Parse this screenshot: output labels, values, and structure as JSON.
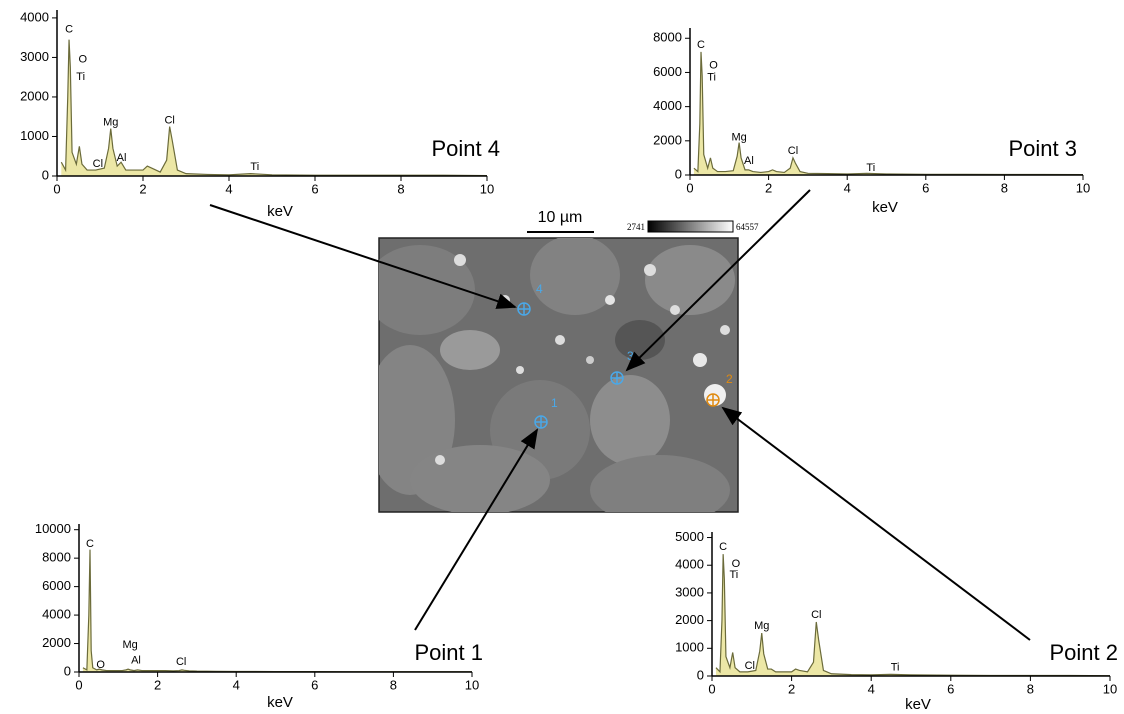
{
  "chart_data": [
    {
      "type": "line",
      "title": "Point 4",
      "x_label": "keV",
      "x": [
        0.1,
        0.2,
        0.25,
        0.28,
        0.31,
        0.35,
        0.45,
        0.52,
        0.58,
        0.7,
        0.9,
        1.1,
        1.2,
        1.25,
        1.3,
        1.4,
        1.49,
        1.6,
        1.8,
        2.0,
        2.1,
        2.2,
        2.4,
        2.55,
        2.62,
        2.68,
        2.8,
        3.0,
        3.5,
        4.0,
        4.5,
        5,
        6,
        7,
        8,
        9,
        10
      ],
      "series": [
        {
          "color": "#6b6b3a",
          "values": [
            350,
            150,
            2000,
            3450,
            2750,
            600,
            300,
            750,
            300,
            150,
            150,
            200,
            700,
            1200,
            700,
            250,
            350,
            150,
            150,
            150,
            250,
            200,
            100,
            400,
            1250,
            900,
            150,
            60,
            40,
            30,
            60,
            30,
            20,
            20,
            20,
            20,
            10
          ]
        }
      ],
      "xlim": [
        0,
        10
      ],
      "xticks": [
        0,
        2,
        4,
        6,
        8,
        10
      ],
      "ylim": [
        0,
        4200
      ],
      "yticks": [
        0,
        1000,
        2000,
        3000,
        4000
      ],
      "peaks": [
        {
          "label": "C",
          "x": 0.28,
          "y": 3700
        },
        {
          "label": "O",
          "x": 0.6,
          "y": 2950
        },
        {
          "label": "Ti",
          "x": 0.55,
          "y": 2500
        },
        {
          "label": "Mg",
          "x": 1.25,
          "y": 1350
        },
        {
          "label": "Cl",
          "x": 0.95,
          "y": 300
        },
        {
          "label": "Al",
          "x": 1.5,
          "y": 450
        },
        {
          "label": "Cl",
          "x": 2.62,
          "y": 1400
        },
        {
          "label": "Ti",
          "x": 4.6,
          "y": 230
        }
      ]
    },
    {
      "type": "line",
      "title": "Point 3",
      "x_label": "keV",
      "x": [
        0.1,
        0.2,
        0.25,
        0.28,
        0.31,
        0.35,
        0.45,
        0.52,
        0.58,
        0.7,
        0.9,
        1.1,
        1.2,
        1.25,
        1.3,
        1.4,
        1.49,
        1.6,
        1.8,
        2.0,
        2.1,
        2.2,
        2.4,
        2.55,
        2.62,
        2.68,
        2.8,
        3.0,
        3.5,
        4.0,
        4.5,
        5,
        6,
        7,
        8,
        9,
        10
      ],
      "series": [
        {
          "color": "#6b6b3a",
          "values": [
            400,
            200,
            3000,
            7200,
            5800,
            1200,
            400,
            1000,
            400,
            200,
            200,
            250,
            1100,
            1900,
            1000,
            300,
            300,
            200,
            150,
            200,
            300,
            200,
            150,
            400,
            1000,
            700,
            200,
            100,
            80,
            60,
            100,
            60,
            40,
            40,
            30,
            30,
            20
          ]
        }
      ],
      "xlim": [
        0,
        10
      ],
      "xticks": [
        0,
        2,
        4,
        6,
        8,
        10
      ],
      "ylim": [
        0,
        8600
      ],
      "yticks": [
        0,
        2000,
        4000,
        6000,
        8000
      ],
      "peaks": [
        {
          "label": "C",
          "x": 0.28,
          "y": 7600
        },
        {
          "label": "O",
          "x": 0.6,
          "y": 6400
        },
        {
          "label": "Ti",
          "x": 0.55,
          "y": 5700
        },
        {
          "label": "Mg",
          "x": 1.25,
          "y": 2200
        },
        {
          "label": "Al",
          "x": 1.5,
          "y": 800
        },
        {
          "label": "Cl",
          "x": 2.62,
          "y": 1400
        },
        {
          "label": "Ti",
          "x": 4.6,
          "y": 400
        }
      ]
    },
    {
      "type": "line",
      "title": "Point 1",
      "x_label": "keV",
      "x": [
        0.1,
        0.2,
        0.25,
        0.28,
        0.31,
        0.35,
        0.45,
        0.52,
        0.58,
        0.7,
        0.9,
        1.1,
        1.2,
        1.25,
        1.3,
        1.4,
        1.49,
        1.6,
        1.8,
        2.0,
        2.1,
        2.2,
        2.4,
        2.55,
        2.62,
        2.68,
        2.8,
        3.0,
        3.5,
        4.0,
        4.5,
        5,
        6,
        7,
        8,
        9,
        10
      ],
      "series": [
        {
          "color": "#6b6b3a",
          "values": [
            300,
            150,
            4000,
            8600,
            1500,
            300,
            150,
            200,
            150,
            100,
            100,
            100,
            150,
            200,
            150,
            100,
            150,
            100,
            100,
            100,
            100,
            100,
            80,
            100,
            150,
            120,
            80,
            60,
            50,
            40,
            40,
            30,
            30,
            20,
            20,
            20,
            20
          ]
        }
      ],
      "xlim": [
        0,
        10
      ],
      "xticks": [
        0,
        2,
        4,
        6,
        8,
        10
      ],
      "ylim": [
        0,
        10400
      ],
      "yticks": [
        0,
        2000,
        4000,
        6000,
        8000,
        10000
      ],
      "peaks": [
        {
          "label": "C",
          "x": 0.28,
          "y": 9000
        },
        {
          "label": "O",
          "x": 0.55,
          "y": 500
        },
        {
          "label": "Mg",
          "x": 1.3,
          "y": 1900
        },
        {
          "label": "Al",
          "x": 1.45,
          "y": 800
        },
        {
          "label": "Cl",
          "x": 2.6,
          "y": 700
        }
      ]
    },
    {
      "type": "line",
      "title": "Point 2",
      "x_label": "keV",
      "x": [
        0.1,
        0.2,
        0.25,
        0.28,
        0.31,
        0.35,
        0.45,
        0.52,
        0.58,
        0.7,
        0.9,
        1.1,
        1.2,
        1.25,
        1.3,
        1.4,
        1.49,
        1.6,
        1.8,
        2.0,
        2.1,
        2.2,
        2.4,
        2.55,
        2.62,
        2.68,
        2.8,
        3.0,
        3.5,
        4.0,
        4.5,
        5,
        6,
        7,
        8,
        9,
        10
      ],
      "series": [
        {
          "color": "#6b6b3a",
          "values": [
            300,
            150,
            2000,
            4400,
            3500,
            700,
            300,
            850,
            300,
            150,
            150,
            200,
            900,
            1550,
            800,
            250,
            250,
            150,
            150,
            150,
            250,
            200,
            150,
            500,
            1950,
            1300,
            200,
            80,
            50,
            40,
            60,
            40,
            30,
            20,
            20,
            20,
            10
          ]
        }
      ],
      "xlim": [
        0,
        10
      ],
      "xticks": [
        0,
        2,
        4,
        6,
        8,
        10
      ],
      "ylim": [
        0,
        5200
      ],
      "yticks": [
        0,
        1000,
        2000,
        3000,
        4000,
        5000
      ],
      "peaks": [
        {
          "label": "C",
          "x": 0.28,
          "y": 4650
        },
        {
          "label": "O",
          "x": 0.6,
          "y": 4050
        },
        {
          "label": "Ti",
          "x": 0.55,
          "y": 3650
        },
        {
          "label": "Cl",
          "x": 0.95,
          "y": 350
        },
        {
          "label": "Mg",
          "x": 1.25,
          "y": 1800
        },
        {
          "label": "Cl",
          "x": 2.62,
          "y": 2200
        },
        {
          "label": "Ti",
          "x": 4.6,
          "y": 300
        }
      ]
    }
  ],
  "image": {
    "scale_bar": "10 µm",
    "scale_min": "2741",
    "scale_max": "64557",
    "points": [
      "1",
      "2",
      "3",
      "4"
    ]
  }
}
